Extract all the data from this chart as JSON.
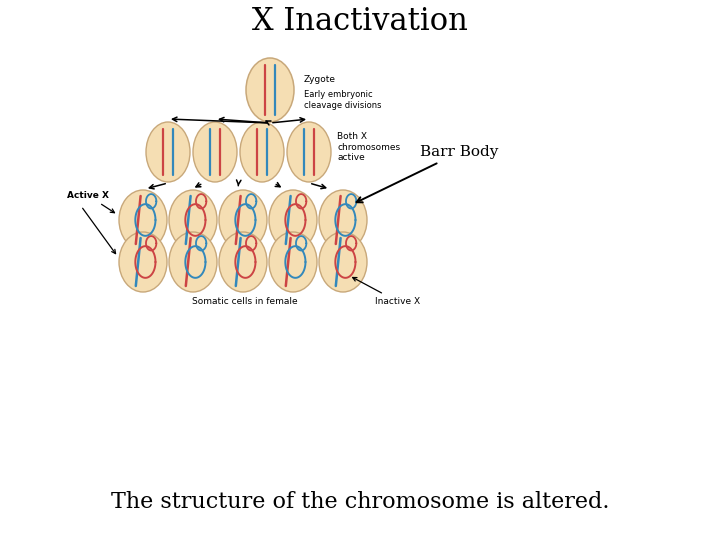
{
  "title": "X Inactivation",
  "subtitle": "The structure of the chromosome is altered.",
  "barr_body_label": "Barr Body",
  "zygote_label": "Zygote",
  "early_label": "Early embryonic\ncleavage divisions",
  "both_x_label": "Both X\nchromosomes\nactive",
  "active_x_label": "Active X",
  "inactive_x_label": "Inactive X",
  "somatic_label": "Somatic cells in female",
  "cell_fill": "#f5deb3",
  "cell_edge": "#c8a87a",
  "red_color": "#cc4444",
  "blue_color": "#3388bb",
  "bg_color": "#ffffff",
  "title_fontsize": 22,
  "subtitle_fontsize": 16,
  "label_fontsize": 7
}
